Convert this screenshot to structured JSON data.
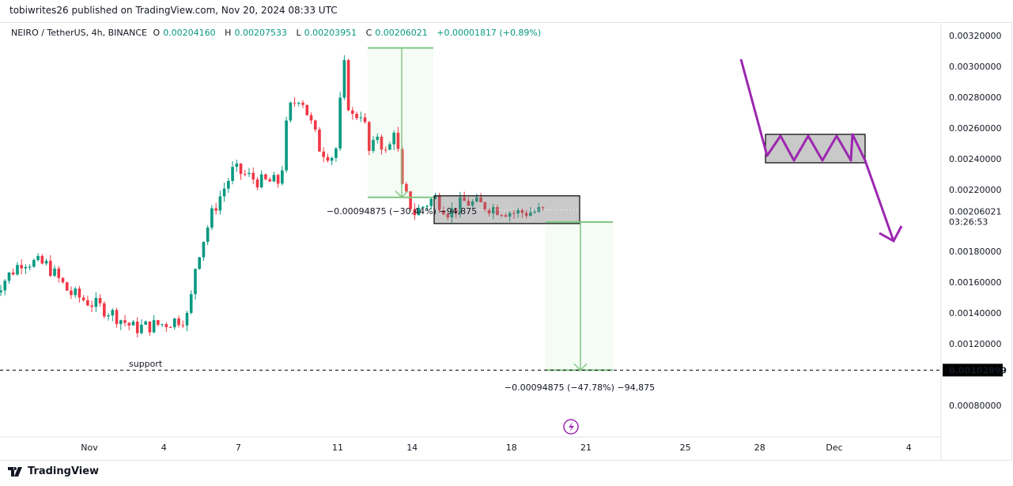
{
  "header": {
    "published": "tobiwrites26 published on TradingView.com, Nov 20, 2024 08:33 UTC"
  },
  "legend": {
    "symbol": "NEIRO / TetherUS, 4h, BINANCE",
    "o_label": "O",
    "o": "0.00204160",
    "h_label": "H",
    "h": "0.00207533",
    "l_label": "L",
    "l": "0.00203951",
    "c_label": "C",
    "c": "0.00206021",
    "change": "+0.00001817 (+0.89%)"
  },
  "colors": {
    "up": "#089981",
    "down": "#f23645",
    "measure": "#81c784",
    "drawing": "#9c27b0",
    "support_label": "#9c27b0"
  },
  "chart_data": {
    "type": "candlestick",
    "title": "NEIRO / TetherUS, 4h, BINANCE",
    "ylim": [
      0.00068,
      0.0033
    ],
    "y_ticks": [
      "0.00320000",
      "0.00300000",
      "0.00280000",
      "0.00260000",
      "0.00240000",
      "0.00220000",
      "0.00180000",
      "0.00160000",
      "0.00140000",
      "0.00120000",
      "0.00080000"
    ],
    "x_ticks": [
      {
        "label": "Nov",
        "day": 1
      },
      {
        "label": "4",
        "day": 4
      },
      {
        "label": "7",
        "day": 7
      },
      {
        "label": "11",
        "day": 11
      },
      {
        "label": "14",
        "day": 14
      },
      {
        "label": "18",
        "day": 18
      },
      {
        "label": "21",
        "day": 21
      },
      {
        "label": "25",
        "day": 25
      },
      {
        "label": "28",
        "day": 28
      },
      {
        "label": "Dec",
        "day": 31
      },
      {
        "label": "4",
        "day": 34
      }
    ],
    "close_path_day_price": [
      [
        -2.9,
        0.00153
      ],
      [
        -1.7,
        0.00174
      ],
      [
        -0.7,
        0.00171
      ],
      [
        0.2,
        0.00153
      ],
      [
        1.8,
        0.00141
      ],
      [
        2.8,
        0.0013
      ],
      [
        4.0,
        0.00133
      ],
      [
        5.0,
        0.00138
      ],
      [
        5.3,
        0.00174
      ],
      [
        6.0,
        0.00207
      ],
      [
        6.8,
        0.00233
      ],
      [
        7.9,
        0.00225
      ],
      [
        8.7,
        0.00225
      ],
      [
        9.0,
        0.00271
      ],
      [
        9.5,
        0.00282
      ],
      [
        10.3,
        0.00246
      ],
      [
        10.9,
        0.00241
      ],
      [
        11.25,
        0.00302
      ],
      [
        11.5,
        0.00266
      ],
      [
        12.0,
        0.00271
      ],
      [
        12.3,
        0.00241
      ],
      [
        12.6,
        0.00256
      ],
      [
        13.0,
        0.00241
      ],
      [
        13.3,
        0.00263
      ],
      [
        13.6,
        0.0022
      ],
      [
        14.1,
        0.00205
      ],
      [
        14.9,
        0.00215
      ],
      [
        15.5,
        0.00205
      ],
      [
        16.1,
        0.00212
      ],
      [
        17.1,
        0.00209
      ],
      [
        18.1,
        0.00205
      ],
      [
        19.33,
        0.00206021
      ]
    ],
    "last_price": "0.00206021",
    "countdown": "03:26:53",
    "support_price": "0.00102899",
    "support_label": "support",
    "measure_1": {
      "label": "−0.00094875 (−30.44%) −94,875",
      "from": 0.00312,
      "to": 0.00215
    },
    "measure_2": {
      "label": "−0.00094875 (−47.78%) −94,875",
      "from": 0.00197,
      "to": 0.00102899
    },
    "range_box": {
      "top": 0.00216,
      "bottom": 0.00198
    }
  },
  "footer": {
    "brand": "TradingView"
  }
}
